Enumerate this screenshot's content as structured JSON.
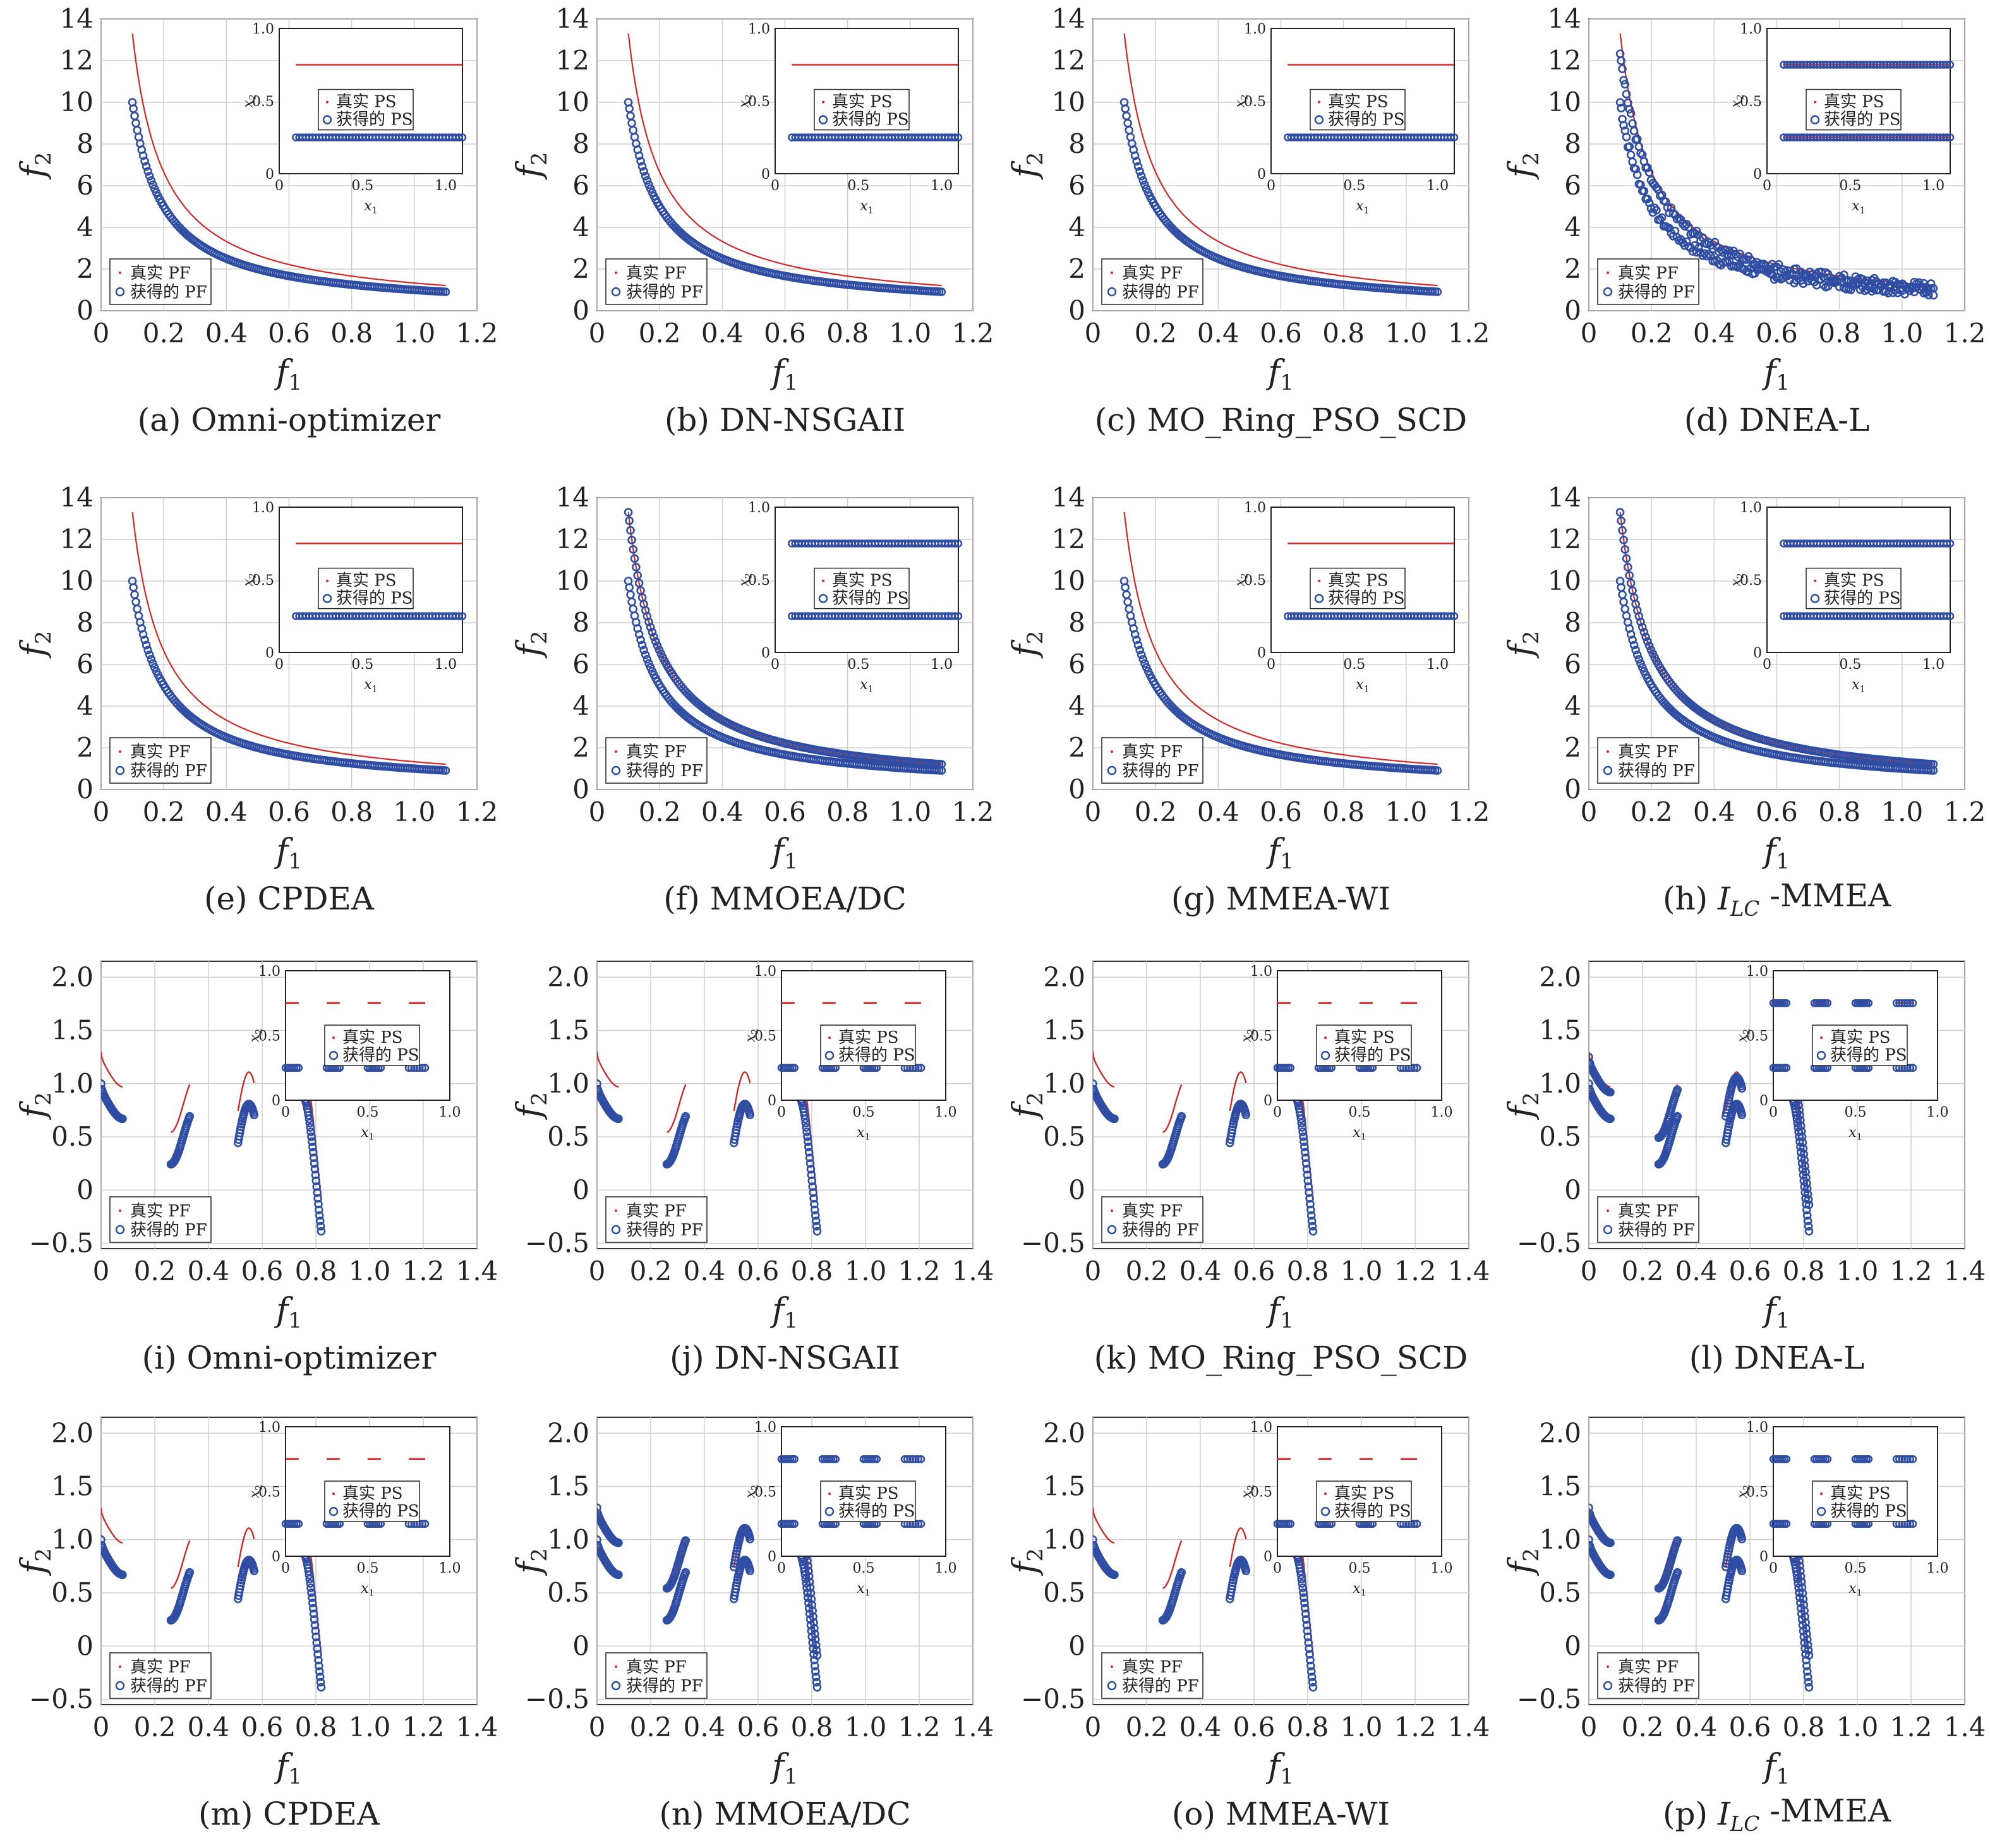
{
  "colors": {
    "true_front": "#d62728",
    "obtained": "#2f4ea3",
    "grid": "#cfcfcf",
    "axis": "#333333"
  },
  "legend": {
    "pf_true": "真实 PF",
    "pf_obtained": "获得的 PF",
    "ps_true": "真实 PS",
    "ps_obtained": "获得的 PS"
  },
  "axes": {
    "xlabel": "f1",
    "ylabel": "f2",
    "inset_xlabel": "x1",
    "inset_ylabel": "x2",
    "top_xticks": [
      "0",
      "0.2",
      "0.4",
      "0.6",
      "0.8",
      "1.0",
      "1.2"
    ],
    "top_yticks": [
      "0",
      "2",
      "4",
      "6",
      "8",
      "10",
      "12",
      "14"
    ],
    "bottom_xticks": [
      "0",
      "0.2",
      "0.4",
      "0.6",
      "0.8",
      "1.0",
      "1.2",
      "1.4"
    ],
    "bottom_yticks": [
      "−0.5",
      "0",
      "0.5",
      "1.0",
      "1.5",
      "2.0"
    ],
    "top_inset_xticks": [
      "0",
      "0.5",
      "1.0"
    ],
    "bottom_inset_xticks": [
      "0",
      "0.5",
      "1.0"
    ],
    "inset_yticks": [
      "0",
      "0.5",
      "1.0"
    ]
  },
  "captions": [
    {
      "label": "(a)",
      "name": "Omni-optimizer"
    },
    {
      "label": "(b)",
      "name": "DN-NSGAII"
    },
    {
      "label": "(c)",
      "name": "MO_Ring_PSO_SCD"
    },
    {
      "label": "(d)",
      "name": "DNEA-L"
    },
    {
      "label": "(e)",
      "name": "CPDEA"
    },
    {
      "label": "(f)",
      "name": "MMOEA/DC"
    },
    {
      "label": "(g)",
      "name": "MMEA-WI"
    },
    {
      "label": "(h)",
      "name": "I",
      "sub": "LC",
      "tail": " -MMEA"
    },
    {
      "label": "(i)",
      "name": "Omni-optimizer"
    },
    {
      "label": "(j)",
      "name": "DN-NSGAII"
    },
    {
      "label": "(k)",
      "name": "MO_Ring_PSO_SCD"
    },
    {
      "label": "(l)",
      "name": "DNEA-L"
    },
    {
      "label": "(m)",
      "name": "CPDEA"
    },
    {
      "label": "(n)",
      "name": "MMOEA/DC"
    },
    {
      "label": "(o)",
      "name": "MMEA-WI"
    },
    {
      "label": "(p)",
      "name": "I",
      "sub": "LC",
      "tail": " -MMEA"
    }
  ],
  "chart_data": [
    {
      "type": "scatter",
      "panel": "a",
      "problem": "hyperbolic",
      "xlim": [
        0,
        1.2
      ],
      "ylim": [
        0,
        14
      ],
      "grid": true,
      "legend_position": "bottom-left",
      "pf_true": {
        "x_range": [
          0.1,
          1.1
        ],
        "f2": "1.33/f1"
      },
      "pf_obtained": [
        {
          "x_range": [
            0.1,
            1.1
          ],
          "f2": "1/f1"
        }
      ],
      "inset": {
        "xlim": [
          0,
          1.1
        ],
        "ylim": [
          0,
          1.0
        ],
        "ps_true_x2": [
          0.75
        ],
        "ps_obtained_x2": [
          0.25
        ]
      }
    },
    {
      "type": "scatter",
      "panel": "b",
      "problem": "hyperbolic",
      "xlim": [
        0,
        1.2
      ],
      "ylim": [
        0,
        14
      ],
      "grid": true,
      "legend_position": "bottom-left",
      "pf_true": {
        "x_range": [
          0.1,
          1.1
        ],
        "f2": "1.33/f1"
      },
      "pf_obtained": [
        {
          "x_range": [
            0.1,
            1.1
          ],
          "f2": "1/f1"
        }
      ],
      "inset": {
        "xlim": [
          0,
          1.1
        ],
        "ylim": [
          0,
          1.0
        ],
        "ps_true_x2": [
          0.75
        ],
        "ps_obtained_x2": [
          0.25
        ]
      }
    },
    {
      "type": "scatter",
      "panel": "c",
      "problem": "hyperbolic",
      "xlim": [
        0,
        1.2
      ],
      "ylim": [
        0,
        14
      ],
      "grid": true,
      "legend_position": "bottom-left",
      "pf_true": {
        "x_range": [
          0.1,
          1.1
        ],
        "f2": "1.33/f1"
      },
      "pf_obtained": [
        {
          "x_range": [
            0.1,
            1.1
          ],
          "f2": "1/f1"
        }
      ],
      "inset": {
        "xlim": [
          0,
          1.1
        ],
        "ylim": [
          0,
          1.0
        ],
        "ps_true_x2": [
          0.75
        ],
        "ps_obtained_x2": [
          0.25
        ]
      }
    },
    {
      "type": "scatter",
      "panel": "d",
      "problem": "hyperbolic",
      "xlim": [
        0,
        1.2
      ],
      "ylim": [
        0,
        14
      ],
      "grid": true,
      "legend_position": "bottom-left",
      "pf_true": {
        "x_range": [
          0.1,
          1.1
        ],
        "f2": "1.33/f1"
      },
      "pf_obtained": [
        {
          "x_range": [
            0.1,
            1.1
          ],
          "f2": "1/f1"
        },
        {
          "x_range": [
            0.1,
            1.1
          ],
          "f2": "1.25/f1"
        }
      ],
      "inset": {
        "xlim": [
          0,
          1.1
        ],
        "ylim": [
          0,
          1.0
        ],
        "ps_true_x2": [
          0.75,
          0.25
        ],
        "ps_obtained_x2": [
          0.75,
          0.25
        ]
      }
    },
    {
      "type": "scatter",
      "panel": "e",
      "problem": "hyperbolic",
      "xlim": [
        0,
        1.2
      ],
      "ylim": [
        0,
        14
      ],
      "grid": true,
      "legend_position": "bottom-left",
      "pf_true": {
        "x_range": [
          0.1,
          1.1
        ],
        "f2": "1.33/f1"
      },
      "pf_obtained": [
        {
          "x_range": [
            0.1,
            1.1
          ],
          "f2": "1/f1"
        }
      ],
      "inset": {
        "xlim": [
          0,
          1.1
        ],
        "ylim": [
          0,
          1.0
        ],
        "ps_true_x2": [
          0.75
        ],
        "ps_obtained_x2": [
          0.25
        ]
      }
    },
    {
      "type": "scatter",
      "panel": "f",
      "problem": "hyperbolic",
      "xlim": [
        0,
        1.2
      ],
      "ylim": [
        0,
        14
      ],
      "grid": true,
      "legend_position": "bottom-left",
      "pf_true": {
        "x_range": [
          0.1,
          1.1
        ],
        "f2": "1.33/f1"
      },
      "pf_obtained": [
        {
          "x_range": [
            0.1,
            1.1
          ],
          "f2": "1/f1"
        },
        {
          "x_range": [
            0.1,
            1.1
          ],
          "f2": "1.33/f1"
        }
      ],
      "inset": {
        "xlim": [
          0,
          1.1
        ],
        "ylim": [
          0,
          1.0
        ],
        "ps_true_x2": [],
        "ps_obtained_x2": [
          0.75,
          0.25
        ]
      }
    },
    {
      "type": "scatter",
      "panel": "g",
      "problem": "hyperbolic",
      "xlim": [
        0,
        1.2
      ],
      "ylim": [
        0,
        14
      ],
      "grid": true,
      "legend_position": "bottom-left",
      "pf_true": {
        "x_range": [
          0.1,
          1.1
        ],
        "f2": "1.33/f1"
      },
      "pf_obtained": [
        {
          "x_range": [
            0.1,
            1.1
          ],
          "f2": "1/f1"
        }
      ],
      "inset": {
        "xlim": [
          0,
          1.1
        ],
        "ylim": [
          0,
          1.0
        ],
        "ps_true_x2": [
          0.75
        ],
        "ps_obtained_x2": [
          0.25
        ]
      }
    },
    {
      "type": "scatter",
      "panel": "h",
      "problem": "hyperbolic",
      "xlim": [
        0,
        1.2
      ],
      "ylim": [
        0,
        14
      ],
      "grid": true,
      "legend_position": "bottom-left",
      "pf_true": {
        "x_range": [
          0.1,
          1.1
        ],
        "f2": "1.33/f1"
      },
      "pf_obtained": [
        {
          "x_range": [
            0.1,
            1.1
          ],
          "f2": "1/f1"
        },
        {
          "x_range": [
            0.1,
            1.1
          ],
          "f2": "1.33/f1"
        }
      ],
      "inset": {
        "xlim": [
          0,
          1.1
        ],
        "ylim": [
          0,
          1.0
        ],
        "ps_true_x2": [],
        "ps_obtained_x2": [
          0.75,
          0.25
        ]
      }
    },
    {
      "type": "scatter",
      "panel": "i",
      "problem": "disconnected",
      "xlim": [
        0,
        1.4
      ],
      "ylim": [
        -0.55,
        2.15
      ],
      "grid": true,
      "legend_position": "bottom-left",
      "pf_true_offset": 0.3,
      "pf_obtained_offsets": [
        0
      ],
      "segments": [
        [
          0.0,
          0.08
        ],
        [
          0.26,
          0.33
        ],
        [
          0.51,
          0.57
        ],
        [
          0.76,
          0.82
        ]
      ],
      "inset": {
        "xlim": [
          0,
          1.0
        ],
        "ylim": [
          0,
          1.0
        ],
        "ps_true_x2": [
          0.75
        ],
        "ps_obtained_x2": [
          0.25
        ],
        "ps_dashed": true
      }
    },
    {
      "type": "scatter",
      "panel": "j",
      "problem": "disconnected",
      "xlim": [
        0,
        1.4
      ],
      "ylim": [
        -0.55,
        2.15
      ],
      "grid": true,
      "legend_position": "bottom-left",
      "pf_true_offset": 0.3,
      "pf_obtained_offsets": [
        0
      ],
      "segments": [
        [
          0.0,
          0.08
        ],
        [
          0.26,
          0.33
        ],
        [
          0.51,
          0.57
        ],
        [
          0.76,
          0.82
        ]
      ],
      "inset": {
        "xlim": [
          0,
          1.0
        ],
        "ylim": [
          0,
          1.0
        ],
        "ps_true_x2": [
          0.75
        ],
        "ps_obtained_x2": [
          0.25
        ],
        "ps_dashed": true
      }
    },
    {
      "type": "scatter",
      "panel": "k",
      "problem": "disconnected",
      "xlim": [
        0,
        1.4
      ],
      "ylim": [
        -0.55,
        2.15
      ],
      "grid": true,
      "legend_position": "bottom-left",
      "pf_true_offset": 0.3,
      "pf_obtained_offsets": [
        0
      ],
      "segments": [
        [
          0.0,
          0.08
        ],
        [
          0.26,
          0.33
        ],
        [
          0.51,
          0.57
        ],
        [
          0.76,
          0.82
        ]
      ],
      "inset": {
        "xlim": [
          0,
          1.0
        ],
        "ylim": [
          0,
          1.0
        ],
        "ps_true_x2": [
          0.75
        ],
        "ps_obtained_x2": [
          0.25
        ],
        "ps_dashed": true
      }
    },
    {
      "type": "scatter",
      "panel": "l",
      "problem": "disconnected",
      "xlim": [
        0,
        1.4
      ],
      "ylim": [
        -0.55,
        2.15
      ],
      "grid": true,
      "legend_position": "bottom-left",
      "pf_true_offset": 0.3,
      "pf_obtained_offsets": [
        0,
        0.25
      ],
      "segments": [
        [
          0.0,
          0.08
        ],
        [
          0.26,
          0.33
        ],
        [
          0.51,
          0.57
        ],
        [
          0.76,
          0.82
        ]
      ],
      "inset": {
        "xlim": [
          0,
          1.0
        ],
        "ylim": [
          0,
          1.0
        ],
        "ps_true_x2": [
          0.75
        ],
        "ps_obtained_x2": [
          0.25,
          0.75
        ],
        "ps_dashed": true
      }
    },
    {
      "type": "scatter",
      "panel": "m",
      "problem": "disconnected",
      "xlim": [
        0,
        1.4
      ],
      "ylim": [
        -0.55,
        2.15
      ],
      "grid": true,
      "legend_position": "bottom-left",
      "pf_true_offset": 0.3,
      "pf_obtained_offsets": [
        0
      ],
      "segments": [
        [
          0.0,
          0.08
        ],
        [
          0.26,
          0.33
        ],
        [
          0.51,
          0.57
        ],
        [
          0.76,
          0.82
        ]
      ],
      "inset": {
        "xlim": [
          0,
          1.0
        ],
        "ylim": [
          0,
          1.0
        ],
        "ps_true_x2": [
          0.75
        ],
        "ps_obtained_x2": [
          0.25
        ],
        "ps_dashed": true
      }
    },
    {
      "type": "scatter",
      "panel": "n",
      "problem": "disconnected",
      "xlim": [
        0,
        1.4
      ],
      "ylim": [
        -0.55,
        2.15
      ],
      "grid": true,
      "legend_position": "bottom-left",
      "pf_true_offset": 0.3,
      "pf_obtained_offsets": [
        0,
        0.3
      ],
      "segments": [
        [
          0.0,
          0.08
        ],
        [
          0.26,
          0.33
        ],
        [
          0.51,
          0.57
        ],
        [
          0.76,
          0.82
        ]
      ],
      "inset": {
        "xlim": [
          0,
          1.0
        ],
        "ylim": [
          0,
          1.0
        ],
        "ps_true_x2": [],
        "ps_obtained_x2": [
          0.75,
          0.25
        ],
        "ps_dashed": true
      }
    },
    {
      "type": "scatter",
      "panel": "o",
      "problem": "disconnected",
      "xlim": [
        0,
        1.4
      ],
      "ylim": [
        -0.55,
        2.15
      ],
      "grid": true,
      "legend_position": "bottom-left",
      "pf_true_offset": 0.3,
      "pf_obtained_offsets": [
        0
      ],
      "segments": [
        [
          0.0,
          0.08
        ],
        [
          0.26,
          0.33
        ],
        [
          0.51,
          0.57
        ],
        [
          0.76,
          0.82
        ]
      ],
      "inset": {
        "xlim": [
          0,
          1.0
        ],
        "ylim": [
          0,
          1.0
        ],
        "ps_true_x2": [
          0.75
        ],
        "ps_obtained_x2": [
          0.25
        ],
        "ps_dashed": true
      }
    },
    {
      "type": "scatter",
      "panel": "p",
      "problem": "disconnected",
      "xlim": [
        0,
        1.4
      ],
      "ylim": [
        -0.55,
        2.15
      ],
      "grid": true,
      "legend_position": "bottom-left",
      "pf_true_offset": 0.3,
      "pf_obtained_offsets": [
        0,
        0.3
      ],
      "segments": [
        [
          0.0,
          0.08
        ],
        [
          0.26,
          0.33
        ],
        [
          0.51,
          0.57
        ],
        [
          0.76,
          0.82
        ]
      ],
      "inset": {
        "xlim": [
          0,
          1.0
        ],
        "ylim": [
          0,
          1.0
        ],
        "ps_true_x2": [],
        "ps_obtained_x2": [
          0.75,
          0.25
        ],
        "ps_dashed": true
      }
    }
  ]
}
